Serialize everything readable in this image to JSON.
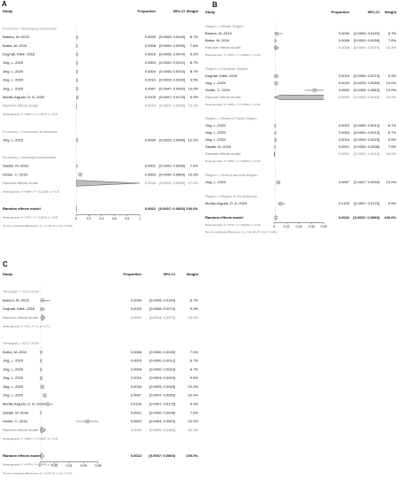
{
  "chart_data": [
    {
      "type": "forest",
      "label": "A",
      "headers": [
        "Study",
        "Proportion",
        "95%-CI",
        "Weight"
      ],
      "xlim": [
        0,
        1
      ],
      "xticks": [
        0,
        0.2,
        0.4,
        0.6,
        0.8,
        1
      ],
      "groups": [
        {
          "title": "Economy = developing economies",
          "studies": [
            {
              "name": "Basera, W.-2015",
              "proportion": 0.0039,
              "proportion_label": "0.0039",
              "ci": [
                0.0005,
                0.014
              ],
              "ci_label": "[0.0005; 0.0140]",
              "weight": 8.7,
              "weight_label": "8.7%"
            },
            {
              "name": "Botha, M.-2019",
              "proportion": 0.0008,
              "proportion_label": "0.0008",
              "ci": [
                0,
                0.0039
              ],
              "ci_label": "[0.0000; 0.0039]",
              "weight": 7.6,
              "weight_label": "7.6%"
            },
            {
              "name": "Dognati, Dilek -2016",
              "proportion": 0.0029,
              "proportion_label": "0.0029",
              "ci": [
                0.0006,
                0.0074
              ],
              "ci_label": "[0.0006; 0.0074]",
              "weight": 9.3,
              "weight_label": "9.3%"
            },
            {
              "name": "Jing, L.-2020",
              "proportion": 0.0003,
              "proportion_label": "0.0003",
              "ci": [
                0,
                0.0012
              ],
              "ci_label": "[0.0000; 0.0012]",
              "weight": 8.7,
              "weight_label": "8.7%"
            },
            {
              "name": "Jing, L.-2020",
              "proportion": 0.0004,
              "proportion_label": "0.0004",
              "ci": [
                0,
                0.0013
              ],
              "ci_label": "[0.0000; 0.0013]",
              "weight": 8.7,
              "weight_label": "8.7%"
            },
            {
              "name": "Jing, L.-2020",
              "proportion": 0.001,
              "proportion_label": "0.0010",
              "ci": [
                0.0003,
                0.0023
              ],
              "ci_label": "[0.0003; 0.0023]",
              "weight": 9.5,
              "weight_label": "9.5%"
            },
            {
              "name": "Jing, L.-2020",
              "proportion": 0.0067,
              "proportion_label": "0.0067",
              "ci": [
                0.0047,
                0.0092
              ],
              "ci_label": "[0.0047; 0.0092]",
              "weight": 10.0,
              "weight_label": "10.0%"
            },
            {
              "name": "Morillo-Argudo, D. A.-2020",
              "proportion": 0.0105,
              "proportion_label": "0.0105",
              "ci": [
                0.0057,
                0.0175
              ],
              "ci_label": "[0.0057; 0.0175]",
              "weight": 9.9,
              "weight_label": "9.9%"
            }
          ],
          "pooled": {
            "name": "Random effects model",
            "proportion": 0.0019,
            "proportion_label": "0.0019",
            "ci": [
              0.0007,
              0.0045
            ],
            "ci_label": "[0.0007; 0.0045]",
            "weight": 72.3,
            "weight_label": "72.3%"
          },
          "heterogeneity": "Heterogeneity: I² = 86%, τ² = 1.1076, p < 0.01"
        },
        {
          "title": "Economy = economies in transition",
          "studies": [
            {
              "name": "Jing, L.-2020",
              "proportion": 0.0034,
              "proportion_label": "0.0034",
              "ci": [
                0.0025,
                0.0045
              ],
              "ci_label": "[0.0025; 0.0045]",
              "weight": 10.0,
              "weight_label": "10.0%"
            }
          ]
        },
        {
          "title": "Economy = developed economies",
          "studies": [
            {
              "name": "Sasaki, M.-2018",
              "proportion": 0.0001,
              "proportion_label": "0.0001",
              "ci": [
                0,
                0.0006
              ],
              "ci_label": "[0.0000; 0.0006]",
              "weight": 7.6,
              "weight_label": "7.6%"
            },
            {
              "name": "Venter, C.-2016",
              "proportion": 0.0653,
              "proportion_label": "0.0653",
              "ci": [
                0.0494,
                0.0843
              ],
              "ci_label": "[0.0494; 0.0843]",
              "weight": 10.0,
              "weight_label": "10.0%"
            }
          ],
          "pooled": {
            "name": "Random effects model",
            "proportion": 0.0026,
            "proportion_label": "0.0026",
            "ci": [
              0,
              0.9995
            ],
            "ci_label": "[0.0000; 0.9995]",
            "weight": 17.6,
            "weight_label": "17.6%"
          },
          "heterogeneity": "Heterogeneity: I² = 98%, τ² = 20.2196, p < 0.01"
        }
      ],
      "overall": {
        "name": "Random effects model",
        "proportion": 0.0022,
        "proportion_label": "0.0022",
        "ci": [
          0.0007,
          0.006
        ],
        "ci_label": "[0.0007; 0.0060]",
        "weight": 100.0,
        "weight_label": "100.0%"
      },
      "overall_heterogeneity": "Heterogeneity: I² = 97%, τ² = 0.5340, p < 0.01",
      "subgroup_test": "Test for subgroup differences: χ²₂ = 1.26, df = 2 (p = 0.53)"
    },
    {
      "type": "forest",
      "label": "B",
      "headers": [
        "Study",
        "Proportion",
        "95%-CI",
        "Weight"
      ],
      "xlim": [
        0,
        0.08
      ],
      "xticks": [
        0,
        0.02,
        0.04,
        0.06,
        0.08
      ],
      "groups": [
        {
          "title": "Region = African Region",
          "studies": [
            {
              "name": "Basera, W.-2015",
              "proportion": 0.0039,
              "proportion_label": "0.0039",
              "ci": [
                0.0005,
                0.014
              ],
              "ci_label": "[0.0005; 0.0140]",
              "weight": 8.7,
              "weight_label": "8.7%"
            },
            {
              "name": "Botha, M.-2019",
              "proportion": 0.0008,
              "proportion_label": "0.0008",
              "ci": [
                0,
                0.0039
              ],
              "ci_label": "[0.0000; 0.0039]",
              "weight": 7.6,
              "weight_label": "7.6%"
            }
          ],
          "pooled": {
            "name": "Random effects model",
            "proportion": 0.0018,
            "proportion_label": "0.0018",
            "ci": [
              0.0004,
              0.0074
            ],
            "ci_label": "[0.0004; 0.0074]",
            "weight": 16.3,
            "weight_label": "16.3%"
          },
          "heterogeneity": "Heterogeneity: I² = 36%, τ² = 0.3846, p = 0.21"
        },
        {
          "title": "Region = European Region",
          "studies": [
            {
              "name": "Dognati, Dilek -2016",
              "proportion": 0.0029,
              "proportion_label": "0.0029",
              "ci": [
                0.0006,
                0.0074
              ],
              "ci_label": "[0.0006; 0.0074]",
              "weight": 9.3,
              "weight_label": "9.3%"
            },
            {
              "name": "Jing, L.-2020",
              "proportion": 0.0034,
              "proportion_label": "0.0034",
              "ci": [
                0.0025,
                0.0045
              ],
              "ci_label": "[0.0025; 0.0045]",
              "weight": 10.0,
              "weight_label": "10.0%"
            },
            {
              "name": "Venter, C.-2016",
              "proportion": 0.0653,
              "proportion_label": "0.0653",
              "ci": [
                0.0494,
                0.0843
              ],
              "ci_label": "[0.0494; 0.0843]",
              "weight": 10.0,
              "weight_label": "10.0%"
            }
          ],
          "pooled": {
            "name": "Random effects model",
            "proportion": 0.0096,
            "proportion_label": "0.0096",
            "ci": [
              0,
              0.9445
            ],
            "ci_label": "[0.0000; 0.9445]",
            "weight": 29.3,
            "weight_label": "29.3%"
          },
          "heterogeneity": "Heterogeneity: I² = 98%, τ² = 9.1964, p < 0.01"
        },
        {
          "title": "Region = Western Pacific Region",
          "studies": [
            {
              "name": "Jing, L.-2020",
              "proportion": 0.0003,
              "proportion_label": "0.0003",
              "ci": [
                0,
                0.0012
              ],
              "ci_label": "[0.0000; 0.0012]",
              "weight": 8.7,
              "weight_label": "8.7%"
            },
            {
              "name": "Jing, L.-2020",
              "proportion": 0.0004,
              "proportion_label": "0.0004",
              "ci": [
                0,
                0.0013
              ],
              "ci_label": "[0.0000; 0.0013]",
              "weight": 8.7,
              "weight_label": "8.7%"
            },
            {
              "name": "Jing, L.-2020",
              "proportion": 0.001,
              "proportion_label": "0.0010",
              "ci": [
                0.0003,
                0.0023
              ],
              "ci_label": "[0.0003; 0.0023]",
              "weight": 9.5,
              "weight_label": "9.5%"
            },
            {
              "name": "Sasaki, M.-2018",
              "proportion": 0.0001,
              "proportion_label": "0.0001",
              "ci": [
                0,
                0.0006
              ],
              "ci_label": "[0.0000; 0.0006]",
              "weight": 7.6,
              "weight_label": "7.6%"
            }
          ],
          "pooled": {
            "name": "Random effects model",
            "proportion": 0.0004,
            "proportion_label": "0.0004",
            "ci": [
              0.0002,
              0.001
            ],
            "ci_label": "[0.0002; 0.0010]",
            "weight": 34.5,
            "weight_label": "34.5%"
          },
          "heterogeneity": "Heterogeneity: I² = 58%, τ² = 0.5363, p = 0.07"
        },
        {
          "title": "Region = South-East Asia Region",
          "studies": [
            {
              "name": "Jing, L.-2020",
              "proportion": 0.0067,
              "proportion_label": "0.0067",
              "ci": [
                0.0047,
                0.0092
              ],
              "ci_label": "[0.0047; 0.0092]",
              "weight": 10.0,
              "weight_label": "10.0%"
            }
          ]
        },
        {
          "title": "Region = Region of the Americas",
          "studies": [
            {
              "name": "Morillo-Argudo, D. A.-2020",
              "proportion": 0.0105,
              "proportion_label": "0.0105",
              "ci": [
                0.0057,
                0.0175
              ],
              "ci_label": "[0.0057; 0.0175]",
              "weight": 9.9,
              "weight_label": "9.9%"
            }
          ]
        }
      ],
      "overall": {
        "name": "Random effects model",
        "proportion": 0.0022,
        "proportion_label": "0.0022",
        "ci": [
          0.0007,
          0.006
        ],
        "ci_label": "[0.0007; 0.0060]",
        "weight": 100.0,
        "weight_label": "100.0%"
      },
      "overall_heterogeneity": "Heterogeneity: I² = 97%, τ² = 0.5340, p < 0.01",
      "subgroup_test": "Test for subgroup differences: χ²₄ = 41.30, df = 4 (p < 0.01)"
    },
    {
      "type": "forest",
      "label": "C",
      "headers": [
        "Study",
        "Proportion",
        "95%-CI",
        "Weight"
      ],
      "xlim": [
        0,
        0.08
      ],
      "xticks": [
        0,
        0.02,
        0.04,
        0.06,
        0.08
      ],
      "groups": [
        {
          "title": "Timespan = 2013-2016",
          "studies": [
            {
              "name": "Basera, W.-2015",
              "proportion": 0.0039,
              "proportion_label": "0.0039",
              "ci": [
                0.0005,
                0.014
              ],
              "ci_label": "[0.0005; 0.0140]",
              "weight": 8.7,
              "weight_label": "8.7%"
            },
            {
              "name": "Dognati, Dilek -2016",
              "proportion": 0.0029,
              "proportion_label": "0.0029",
              "ci": [
                0.0006,
                0.0074
              ],
              "ci_label": "[0.0006; 0.0074]",
              "weight": 9.3,
              "weight_label": "9.3%"
            }
          ],
          "pooled": {
            "name": "Random effects model",
            "proportion": 0.0032,
            "proportion_label": "0.0032",
            "ci": [
              0.0014,
              0.0072
            ],
            "ci_label": "[0.0014; 0.0072]",
            "weight": 18.0,
            "weight_label": "18.0%"
          },
          "heterogeneity": "Heterogeneity: I² = 0%, τ² = 0, p = 0.73"
        },
        {
          "title": "Timespan = 2017-2020",
          "studies": [
            {
              "name": "Botha, M.-2019",
              "proportion": 0.0008,
              "proportion_label": "0.0008",
              "ci": [
                0,
                0.0039
              ],
              "ci_label": "[0.0000; 0.0039]",
              "weight": 7.6,
              "weight_label": "7.6%"
            },
            {
              "name": "Jing, L.-2020",
              "proportion": 0.0003,
              "proportion_label": "0.0003",
              "ci": [
                0,
                0.0012
              ],
              "ci_label": "[0.0000; 0.0012]",
              "weight": 8.7,
              "weight_label": "8.7%"
            },
            {
              "name": "Jing, L.-2020",
              "proportion": 0.0004,
              "proportion_label": "0.0004",
              "ci": [
                0,
                0.0013
              ],
              "ci_label": "[0.0000; 0.0013]",
              "weight": 8.7,
              "weight_label": "8.7%"
            },
            {
              "name": "Jing, L.-2020",
              "proportion": 0.001,
              "proportion_label": "0.0010",
              "ci": [
                0.0003,
                0.0023
              ],
              "ci_label": "[0.0003; 0.0023]",
              "weight": 9.5,
              "weight_label": "9.5%"
            },
            {
              "name": "Jing, L.-2020",
              "proportion": 0.0034,
              "proportion_label": "0.0034",
              "ci": [
                0.0025,
                0.0045
              ],
              "ci_label": "[0.0025; 0.0045]",
              "weight": 10.0,
              "weight_label": "10.0%"
            },
            {
              "name": "Jing, L.-2020",
              "proportion": 0.0067,
              "proportion_label": "0.0067",
              "ci": [
                0.0047,
                0.0092
              ],
              "ci_label": "[0.0047; 0.0092]",
              "weight": 10.0,
              "weight_label": "10.0%"
            },
            {
              "name": "Morillo-Argudo, D. A.-2020",
              "proportion": 0.0105,
              "proportion_label": "0.0105",
              "ci": [
                0.0057,
                0.0175
              ],
              "ci_label": "[0.0057; 0.0175]",
              "weight": 9.9,
              "weight_label": "9.9%"
            },
            {
              "name": "Sasaki, M.-2018",
              "proportion": 0.0001,
              "proportion_label": "0.0001",
              "ci": [
                0,
                0.0006
              ],
              "ci_label": "[0.0000; 0.0006]",
              "weight": 7.6,
              "weight_label": "7.6%"
            },
            {
              "name": "Venter, C.-2016",
              "proportion": 0.0653,
              "proportion_label": "0.0653",
              "ci": [
                0.0494,
                0.0843
              ],
              "ci_label": "[0.0494; 0.0843]",
              "weight": 10.0,
              "weight_label": "10.0%"
            }
          ],
          "pooled": {
            "name": "Random effects model",
            "proportion": 0.002,
            "proportion_label": "0.0020",
            "ci": [
              0.0005,
              0.0083
            ],
            "ci_label": "[0.0005; 0.0083]",
            "weight": 82.0,
            "weight_label": "82.0%"
          },
          "heterogeneity": "Heterogeneity: I² = 98%, τ² = 0.6557, p < 0.01"
        }
      ],
      "overall": {
        "name": "Random effects model",
        "proportion": 0.0022,
        "proportion_label": "0.0022",
        "ci": [
          0.0007,
          0.006
        ],
        "ci_label": "[0.0007; 0.0060]",
        "weight": 100.0,
        "weight_label": "100.0%"
      },
      "overall_heterogeneity": "Heterogeneity: I² = 97%, τ² = 0.5340, p < 0.01",
      "subgroup_test": "Test for subgroup differences: χ²₁ = 0.40, df = 1 (p = 0.53)"
    }
  ]
}
